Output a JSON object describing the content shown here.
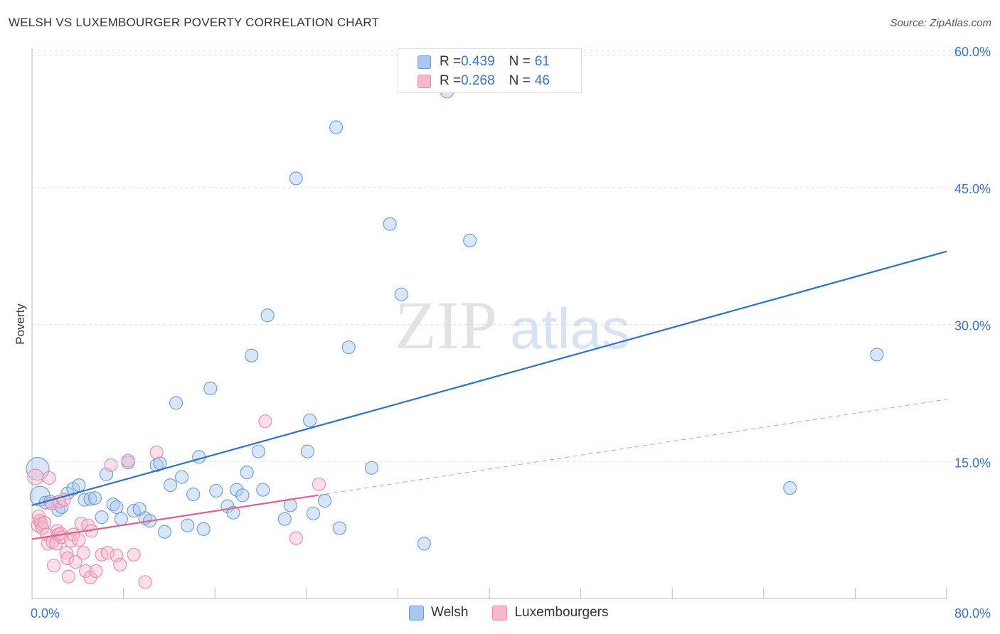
{
  "header": {
    "title": "WELSH VS LUXEMBOURGER POVERTY CORRELATION CHART",
    "source": "Source: ZipAtlas.com"
  },
  "watermark": {
    "zip": "ZIP",
    "atlas": "atlas"
  },
  "legend_top": {
    "rows": [
      {
        "r_label": "R = ",
        "r_value": "0.439",
        "n_label": "N = ",
        "n_value": "61",
        "color": "#a9c8f0",
        "border": "#6a9ad8"
      },
      {
        "r_label": "R = ",
        "r_value": "0.268",
        "n_label": "N = ",
        "n_value": "46",
        "color": "#f7b8cc",
        "border": "#e88aa8"
      }
    ]
  },
  "legend_bottom": [
    {
      "label": "Welsh",
      "color": "#a9c8f0",
      "border": "#6a9ad8"
    },
    {
      "label": "Luxembourgers",
      "color": "#f7b8cc",
      "border": "#e88aa8"
    }
  ],
  "chart_data": {
    "type": "scatter",
    "title": "WELSH VS LUXEMBOURGER POVERTY CORRELATION CHART",
    "xlabel": "",
    "ylabel": "Poverty",
    "xlim": [
      0,
      80
    ],
    "ylim": [
      0,
      63
    ],
    "x_tick_labels": [
      "0.0%",
      "80.0%"
    ],
    "y_ticks": [
      15,
      30,
      45,
      60
    ],
    "y_tick_labels": [
      "15.0%",
      "30.0%",
      "45.0%",
      "60.0%"
    ],
    "grid": true,
    "legend": "top-center",
    "series": [
      {
        "name": "Welsh",
        "color": "#a9c8f0",
        "stroke": "#6a9ad8",
        "line_color": "#2f72c8",
        "trend": {
          "x": [
            0,
            80
          ],
          "y": [
            10.2,
            38.0
          ]
        },
        "points": [
          [
            0.5,
            14.2
          ],
          [
            0.7,
            11.2
          ],
          [
            1.2,
            10.5
          ],
          [
            1.6,
            10.6
          ],
          [
            2.3,
            9.7
          ],
          [
            2.6,
            10.0
          ],
          [
            3.1,
            11.5
          ],
          [
            3.6,
            12.0
          ],
          [
            4.1,
            12.4
          ],
          [
            4.6,
            10.8
          ],
          [
            5.1,
            10.9
          ],
          [
            5.5,
            11.0
          ],
          [
            6.1,
            8.9
          ],
          [
            6.5,
            13.6
          ],
          [
            7.1,
            10.3
          ],
          [
            7.4,
            10.0
          ],
          [
            7.8,
            8.7
          ],
          [
            8.4,
            14.9
          ],
          [
            8.9,
            9.6
          ],
          [
            9.4,
            9.8
          ],
          [
            9.9,
            8.8
          ],
          [
            10.3,
            8.5
          ],
          [
            10.9,
            14.6
          ],
          [
            11.2,
            14.8
          ],
          [
            11.6,
            7.3
          ],
          [
            12.1,
            12.4
          ],
          [
            12.6,
            21.4
          ],
          [
            13.1,
            13.3
          ],
          [
            13.6,
            8.0
          ],
          [
            14.1,
            11.4
          ],
          [
            14.6,
            15.5
          ],
          [
            15.0,
            7.6
          ],
          [
            15.6,
            23.0
          ],
          [
            16.1,
            11.8
          ],
          [
            17.1,
            10.1
          ],
          [
            17.6,
            9.4
          ],
          [
            17.9,
            11.9
          ],
          [
            18.4,
            11.3
          ],
          [
            18.8,
            13.8
          ],
          [
            19.2,
            26.6
          ],
          [
            19.8,
            16.1
          ],
          [
            20.2,
            11.9
          ],
          [
            20.6,
            31.0
          ],
          [
            22.1,
            8.7
          ],
          [
            22.6,
            10.2
          ],
          [
            23.1,
            46.0
          ],
          [
            24.1,
            16.1
          ],
          [
            24.3,
            19.5
          ],
          [
            24.6,
            9.3
          ],
          [
            25.6,
            10.7
          ],
          [
            26.6,
            51.6
          ],
          [
            26.9,
            7.7
          ],
          [
            27.7,
            27.5
          ],
          [
            29.7,
            14.3
          ],
          [
            31.3,
            41.0
          ],
          [
            32.3,
            33.3
          ],
          [
            34.3,
            6.0
          ],
          [
            36.3,
            55.5
          ],
          [
            38.3,
            39.2
          ],
          [
            66.3,
            12.1
          ],
          [
            73.9,
            26.7
          ]
        ]
      },
      {
        "name": "Luxembourgers",
        "color": "#f7b8cc",
        "stroke": "#e88aa8",
        "line_color": "#e0608e",
        "trend": {
          "x": [
            0,
            25
          ],
          "y": [
            6.5,
            11.3
          ]
        },
        "trend_extension": {
          "x": [
            25,
            80
          ],
          "y": [
            11.3,
            21.8
          ]
        },
        "points": [
          [
            0.3,
            13.3
          ],
          [
            0.5,
            8.0
          ],
          [
            0.6,
            9.0
          ],
          [
            0.7,
            8.5
          ],
          [
            0.8,
            8.2
          ],
          [
            0.9,
            7.7
          ],
          [
            1.1,
            8.3
          ],
          [
            1.3,
            7.0
          ],
          [
            1.4,
            6.0
          ],
          [
            1.5,
            13.2
          ],
          [
            1.7,
            10.4
          ],
          [
            1.8,
            6.2
          ],
          [
            1.9,
            3.6
          ],
          [
            2.1,
            6.0
          ],
          [
            2.2,
            7.4
          ],
          [
            2.3,
            7.0
          ],
          [
            2.4,
            10.6
          ],
          [
            2.5,
            7.1
          ],
          [
            2.6,
            6.7
          ],
          [
            2.8,
            10.8
          ],
          [
            3.0,
            5.0
          ],
          [
            3.1,
            4.4
          ],
          [
            3.2,
            2.4
          ],
          [
            3.4,
            6.3
          ],
          [
            3.6,
            7.0
          ],
          [
            3.8,
            4.0
          ],
          [
            4.1,
            6.4
          ],
          [
            4.3,
            8.2
          ],
          [
            4.5,
            5.0
          ],
          [
            4.7,
            3.0
          ],
          [
            4.9,
            8.0
          ],
          [
            5.1,
            2.3
          ],
          [
            5.2,
            7.4
          ],
          [
            5.6,
            3.0
          ],
          [
            6.1,
            4.8
          ],
          [
            6.6,
            5.0
          ],
          [
            6.9,
            14.6
          ],
          [
            7.4,
            4.7
          ],
          [
            7.7,
            3.7
          ],
          [
            8.4,
            15.1
          ],
          [
            8.9,
            4.8
          ],
          [
            9.9,
            1.8
          ],
          [
            10.9,
            16.0
          ],
          [
            20.4,
            19.4
          ],
          [
            23.1,
            6.6
          ],
          [
            25.1,
            12.5
          ]
        ]
      }
    ]
  }
}
